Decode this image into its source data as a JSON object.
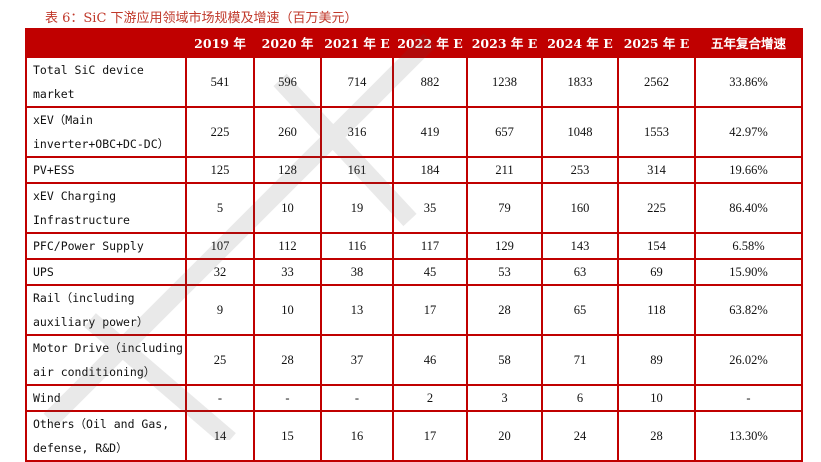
{
  "title": "表 6：SiC 下游应用领域市场规模及增速（百万美元）",
  "header": [
    "",
    "2019 年",
    "2020 年",
    "2021 年 E",
    "2022 年 E",
    "2023 年 E",
    "2024 年 E",
    "2025 年 E",
    "五年复合增速"
  ],
  "rows": [
    {
      "label": "Total SiC device market",
      "values": [
        "541",
        "596",
        "714",
        "882",
        "1238",
        "1833",
        "2562",
        "33.86%"
      ]
    },
    {
      "label": "xEV（Main inverter+OBC+DC-DC）",
      "values": [
        "225",
        "260",
        "316",
        "419",
        "657",
        "1048",
        "1553",
        "42.97%"
      ]
    },
    {
      "label": "PV+ESS",
      "values": [
        "125",
        "128",
        "161",
        "184",
        "211",
        "253",
        "314",
        "19.66%"
      ]
    },
    {
      "label": "xEV Charging Infrastructure",
      "values": [
        "5",
        "10",
        "19",
        "35",
        "79",
        "160",
        "225",
        "86.40%"
      ]
    },
    {
      "label": "PFC/Power Supply",
      "values": [
        "107",
        "112",
        "116",
        "117",
        "129",
        "143",
        "154",
        "6.58%"
      ]
    },
    {
      "label": "UPS",
      "values": [
        "32",
        "33",
        "38",
        "45",
        "53",
        "63",
        "69",
        "15.90%"
      ]
    },
    {
      "label": "Rail（including auxiliary power）",
      "values": [
        "9",
        "10",
        "13",
        "17",
        "28",
        "65",
        "118",
        "63.82%"
      ]
    },
    {
      "label": "Motor Drive（including air conditioning）",
      "values": [
        "25",
        "28",
        "37",
        "46",
        "58",
        "71",
        "89",
        "26.02%"
      ]
    },
    {
      "label": "Wind",
      "values": [
        "-",
        "-",
        "-",
        "2",
        "3",
        "6",
        "10",
        "-"
      ]
    },
    {
      "label": "Others（Oil and Gas, defense, R&D）",
      "values": [
        "14",
        "15",
        "16",
        "17",
        "20",
        "24",
        "28",
        "13.30%"
      ]
    }
  ],
  "colors": {
    "header_bg": "#c00000",
    "border": "#c00000",
    "title": "#c0392b"
  }
}
